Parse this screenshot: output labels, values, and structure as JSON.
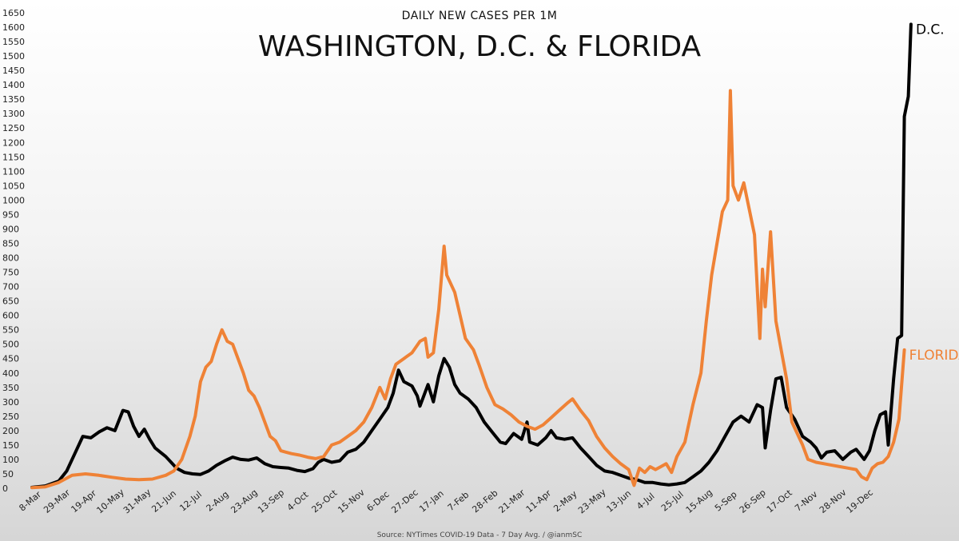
{
  "chart_data": {
    "type": "line",
    "subtitle": "DAILY NEW CASES PER 1M",
    "title": "WASHINGTON, D.C. & FLORIDA",
    "source": "Source: NYTimes COVID-19 Data - 7 Day Avg. / @ianmSC",
    "ylim": [
      0,
      1650
    ],
    "y_ticks": [
      0,
      50,
      100,
      150,
      200,
      250,
      300,
      350,
      400,
      450,
      500,
      550,
      600,
      650,
      700,
      750,
      800,
      850,
      900,
      950,
      1000,
      1050,
      1100,
      1150,
      1200,
      1250,
      1300,
      1350,
      1400,
      1450,
      1500,
      1550,
      1600,
      1650
    ],
    "x_tick_labels": [
      "8-Mar",
      "29-Mar",
      "19-Apr",
      "10-May",
      "31-May",
      "21-Jun",
      "12-Jul",
      "2-Aug",
      "23-Aug",
      "13-Sep",
      "4-Oct",
      "25-Oct",
      "15-Nov",
      "6-Dec",
      "27-Dec",
      "17-Jan",
      "7-Feb",
      "28-Feb",
      "21-Mar",
      "11-Apr",
      "2-May",
      "23-May",
      "13-Jun",
      "4-Jul",
      "25-Jul",
      "15-Aug",
      "5-Sep",
      "26-Sep",
      "17-Oct",
      "7-Nov",
      "28-Nov",
      "19-Dec"
    ],
    "grid": false,
    "legend": "inline labels at series ends",
    "series": [
      {
        "name": "D.C.",
        "color": "#000000",
        "points": [
          [
            0,
            3
          ],
          [
            0.5,
            8
          ],
          [
            1,
            25
          ],
          [
            1.3,
            60
          ],
          [
            1.6,
            120
          ],
          [
            1.9,
            180
          ],
          [
            2.2,
            175
          ],
          [
            2.5,
            195
          ],
          [
            2.8,
            210
          ],
          [
            3.1,
            200
          ],
          [
            3.4,
            270
          ],
          [
            3.6,
            265
          ],
          [
            3.8,
            215
          ],
          [
            4,
            180
          ],
          [
            4.2,
            205
          ],
          [
            4.4,
            170
          ],
          [
            4.6,
            140
          ],
          [
            4.8,
            125
          ],
          [
            5,
            110
          ],
          [
            5.2,
            90
          ],
          [
            5.4,
            70
          ],
          [
            5.7,
            55
          ],
          [
            6,
            50
          ],
          [
            6.3,
            48
          ],
          [
            6.6,
            60
          ],
          [
            6.9,
            80
          ],
          [
            7.2,
            95
          ],
          [
            7.5,
            108
          ],
          [
            7.8,
            100
          ],
          [
            8.1,
            98
          ],
          [
            8.4,
            105
          ],
          [
            8.7,
            85
          ],
          [
            9,
            75
          ],
          [
            9.3,
            72
          ],
          [
            9.6,
            70
          ],
          [
            9.9,
            62
          ],
          [
            10.2,
            58
          ],
          [
            10.5,
            68
          ],
          [
            10.7,
            90
          ],
          [
            10.9,
            100
          ],
          [
            11.2,
            90
          ],
          [
            11.5,
            95
          ],
          [
            11.8,
            125
          ],
          [
            12.1,
            135
          ],
          [
            12.4,
            160
          ],
          [
            12.7,
            200
          ],
          [
            13,
            240
          ],
          [
            13.3,
            280
          ],
          [
            13.5,
            330
          ],
          [
            13.7,
            410
          ],
          [
            13.9,
            370
          ],
          [
            14.2,
            355
          ],
          [
            14.4,
            320
          ],
          [
            14.5,
            285
          ],
          [
            14.8,
            360
          ],
          [
            15,
            300
          ],
          [
            15.2,
            390
          ],
          [
            15.4,
            450
          ],
          [
            15.6,
            420
          ],
          [
            15.8,
            360
          ],
          [
            16,
            330
          ],
          [
            16.3,
            310
          ],
          [
            16.6,
            280
          ],
          [
            16.9,
            230
          ],
          [
            17.2,
            195
          ],
          [
            17.5,
            160
          ],
          [
            17.7,
            155
          ],
          [
            18,
            190
          ],
          [
            18.3,
            170
          ],
          [
            18.5,
            230
          ],
          [
            18.6,
            160
          ],
          [
            18.9,
            150
          ],
          [
            19.2,
            175
          ],
          [
            19.4,
            200
          ],
          [
            19.6,
            175
          ],
          [
            19.9,
            170
          ],
          [
            20.2,
            175
          ],
          [
            20.5,
            140
          ],
          [
            20.8,
            110
          ],
          [
            21.1,
            80
          ],
          [
            21.4,
            60
          ],
          [
            21.7,
            55
          ],
          [
            22,
            45
          ],
          [
            22.3,
            35
          ],
          [
            22.6,
            30
          ],
          [
            22.9,
            20
          ],
          [
            23.2,
            20
          ],
          [
            23.5,
            15
          ],
          [
            23.8,
            12
          ],
          [
            24.1,
            15
          ],
          [
            24.4,
            20
          ],
          [
            24.7,
            40
          ],
          [
            25,
            60
          ],
          [
            25.3,
            90
          ],
          [
            25.6,
            130
          ],
          [
            25.9,
            180
          ],
          [
            26.2,
            230
          ],
          [
            26.5,
            250
          ],
          [
            26.8,
            230
          ],
          [
            27.1,
            290
          ],
          [
            27.3,
            280
          ],
          [
            27.4,
            140
          ],
          [
            27.6,
            270
          ],
          [
            27.8,
            380
          ],
          [
            28,
            385
          ],
          [
            28.2,
            280
          ],
          [
            28.5,
            240
          ],
          [
            28.8,
            180
          ],
          [
            29.1,
            160
          ],
          [
            29.3,
            140
          ],
          [
            29.5,
            105
          ],
          [
            29.7,
            125
          ],
          [
            30,
            130
          ],
          [
            30.3,
            100
          ],
          [
            30.6,
            125
          ],
          [
            30.8,
            135
          ],
          [
            31.1,
            100
          ],
          [
            31.3,
            130
          ],
          [
            31.5,
            200
          ],
          [
            31.7,
            255
          ],
          [
            31.9,
            265
          ],
          [
            32,
            150
          ],
          [
            32.2,
            380
          ],
          [
            32.35,
            520
          ],
          [
            32.5,
            530
          ],
          [
            32.6,
            1290
          ],
          [
            32.75,
            1360
          ],
          [
            32.85,
            1610
          ]
        ]
      },
      {
        "name": "FLORIDA",
        "color": "#ef8236",
        "points": [
          [
            0,
            2
          ],
          [
            0.5,
            5
          ],
          [
            1,
            20
          ],
          [
            1.5,
            45
          ],
          [
            2,
            50
          ],
          [
            2.5,
            45
          ],
          [
            3,
            38
          ],
          [
            3.5,
            32
          ],
          [
            4,
            30
          ],
          [
            4.5,
            32
          ],
          [
            5,
            45
          ],
          [
            5.3,
            60
          ],
          [
            5.6,
            100
          ],
          [
            5.9,
            180
          ],
          [
            6.1,
            250
          ],
          [
            6.3,
            370
          ],
          [
            6.5,
            420
          ],
          [
            6.7,
            440
          ],
          [
            6.9,
            500
          ],
          [
            7.1,
            550
          ],
          [
            7.3,
            510
          ],
          [
            7.5,
            500
          ],
          [
            7.7,
            450
          ],
          [
            7.9,
            400
          ],
          [
            8.1,
            340
          ],
          [
            8.3,
            320
          ],
          [
            8.5,
            280
          ],
          [
            8.7,
            230
          ],
          [
            8.9,
            180
          ],
          [
            9.1,
            165
          ],
          [
            9.3,
            130
          ],
          [
            9.5,
            125
          ],
          [
            9.7,
            120
          ],
          [
            10,
            115
          ],
          [
            10.3,
            108
          ],
          [
            10.6,
            103
          ],
          [
            10.9,
            110
          ],
          [
            11.2,
            150
          ],
          [
            11.5,
            160
          ],
          [
            11.8,
            180
          ],
          [
            12.1,
            200
          ],
          [
            12.4,
            230
          ],
          [
            12.7,
            280
          ],
          [
            13,
            350
          ],
          [
            13.2,
            310
          ],
          [
            13.4,
            380
          ],
          [
            13.6,
            430
          ],
          [
            13.9,
            450
          ],
          [
            14.2,
            470
          ],
          [
            14.5,
            510
          ],
          [
            14.7,
            520
          ],
          [
            14.8,
            455
          ],
          [
            15,
            470
          ],
          [
            15.2,
            620
          ],
          [
            15.4,
            840
          ],
          [
            15.5,
            740
          ],
          [
            15.8,
            680
          ],
          [
            16,
            600
          ],
          [
            16.2,
            520
          ],
          [
            16.5,
            480
          ],
          [
            16.7,
            430
          ],
          [
            17,
            350
          ],
          [
            17.3,
            290
          ],
          [
            17.6,
            275
          ],
          [
            17.9,
            255
          ],
          [
            18.2,
            230
          ],
          [
            18.5,
            215
          ],
          [
            18.8,
            205
          ],
          [
            19.1,
            220
          ],
          [
            19.4,
            245
          ],
          [
            19.7,
            270
          ],
          [
            20,
            295
          ],
          [
            20.2,
            310
          ],
          [
            20.5,
            270
          ],
          [
            20.8,
            235
          ],
          [
            21.1,
            180
          ],
          [
            21.4,
            140
          ],
          [
            21.7,
            110
          ],
          [
            22,
            85
          ],
          [
            22.3,
            65
          ],
          [
            22.5,
            10
          ],
          [
            22.7,
            70
          ],
          [
            22.9,
            55
          ],
          [
            23.1,
            75
          ],
          [
            23.3,
            65
          ],
          [
            23.5,
            75
          ],
          [
            23.7,
            85
          ],
          [
            23.9,
            55
          ],
          [
            24.1,
            110
          ],
          [
            24.4,
            160
          ],
          [
            24.7,
            290
          ],
          [
            25,
            400
          ],
          [
            25.2,
            580
          ],
          [
            25.4,
            740
          ],
          [
            25.6,
            850
          ],
          [
            25.8,
            960
          ],
          [
            26,
            1000
          ],
          [
            26.1,
            1380
          ],
          [
            26.2,
            1050
          ],
          [
            26.4,
            1000
          ],
          [
            26.6,
            1060
          ],
          [
            26.8,
            970
          ],
          [
            27,
            880
          ],
          [
            27.2,
            520
          ],
          [
            27.3,
            760
          ],
          [
            27.4,
            630
          ],
          [
            27.6,
            890
          ],
          [
            27.8,
            580
          ],
          [
            28,
            480
          ],
          [
            28.2,
            380
          ],
          [
            28.4,
            230
          ],
          [
            28.6,
            190
          ],
          [
            28.8,
            150
          ],
          [
            29,
            100
          ],
          [
            29.3,
            90
          ],
          [
            29.6,
            85
          ],
          [
            29.9,
            80
          ],
          [
            30.2,
            75
          ],
          [
            30.5,
            70
          ],
          [
            30.8,
            65
          ],
          [
            31,
            40
          ],
          [
            31.2,
            30
          ],
          [
            31.4,
            70
          ],
          [
            31.6,
            85
          ],
          [
            31.8,
            90
          ],
          [
            32,
            110
          ],
          [
            32.2,
            160
          ],
          [
            32.4,
            240
          ],
          [
            32.6,
            480
          ]
        ]
      }
    ]
  }
}
